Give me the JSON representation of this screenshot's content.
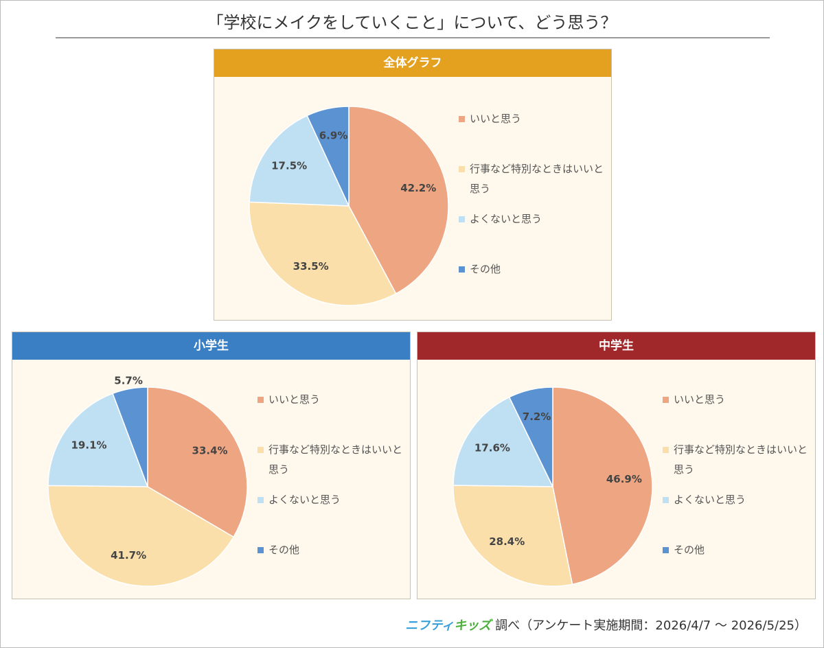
{
  "title": "「学校にメイクをしていくこと」について、どう思う？",
  "footer": {
    "brand": [
      "ニフティ",
      "キッズ"
    ],
    "text": "調べ（アンケート実施期間：2026/4/7 ～ 2026/5/25）"
  },
  "chart_data": [
    {
      "type": "pie",
      "title": "全体グラフ",
      "header_color": "#e3a11f",
      "categories": [
        "いいと思う",
        "行事など特別なときはいいと思う",
        "よくないと思う",
        "その他"
      ],
      "values": [
        42.2,
        33.5,
        17.5,
        6.9
      ],
      "value_labels": [
        "42.2%",
        "33.5%",
        "17.5%",
        "6.9%"
      ],
      "colors": [
        "#eda582",
        "#fbdfaa",
        "#bfe0f2",
        "#5b93d2"
      ]
    },
    {
      "type": "pie",
      "title": "小学生",
      "header_color": "#3a7fc4",
      "categories": [
        "いいと思う",
        "行事など特別なときはいいと思う",
        "よくないと思う",
        "その他"
      ],
      "values": [
        33.4,
        41.7,
        19.1,
        5.7
      ],
      "value_labels": [
        "33.4%",
        "41.7%",
        "19.1%",
        "5.7%"
      ],
      "colors": [
        "#eda582",
        "#fbdfaa",
        "#bfe0f2",
        "#5b93d2"
      ]
    },
    {
      "type": "pie",
      "title": "中学生",
      "header_color": "#a0282a",
      "categories": [
        "いいと思う",
        "行事など特別なときはいいと思う",
        "よくないと思う",
        "その他"
      ],
      "values": [
        46.9,
        28.4,
        17.6,
        7.2
      ],
      "value_labels": [
        "46.9%",
        "28.4%",
        "17.6%",
        "7.2%"
      ],
      "colors": [
        "#eda582",
        "#fbdfaa",
        "#bfe0f2",
        "#5b93d2"
      ]
    }
  ]
}
